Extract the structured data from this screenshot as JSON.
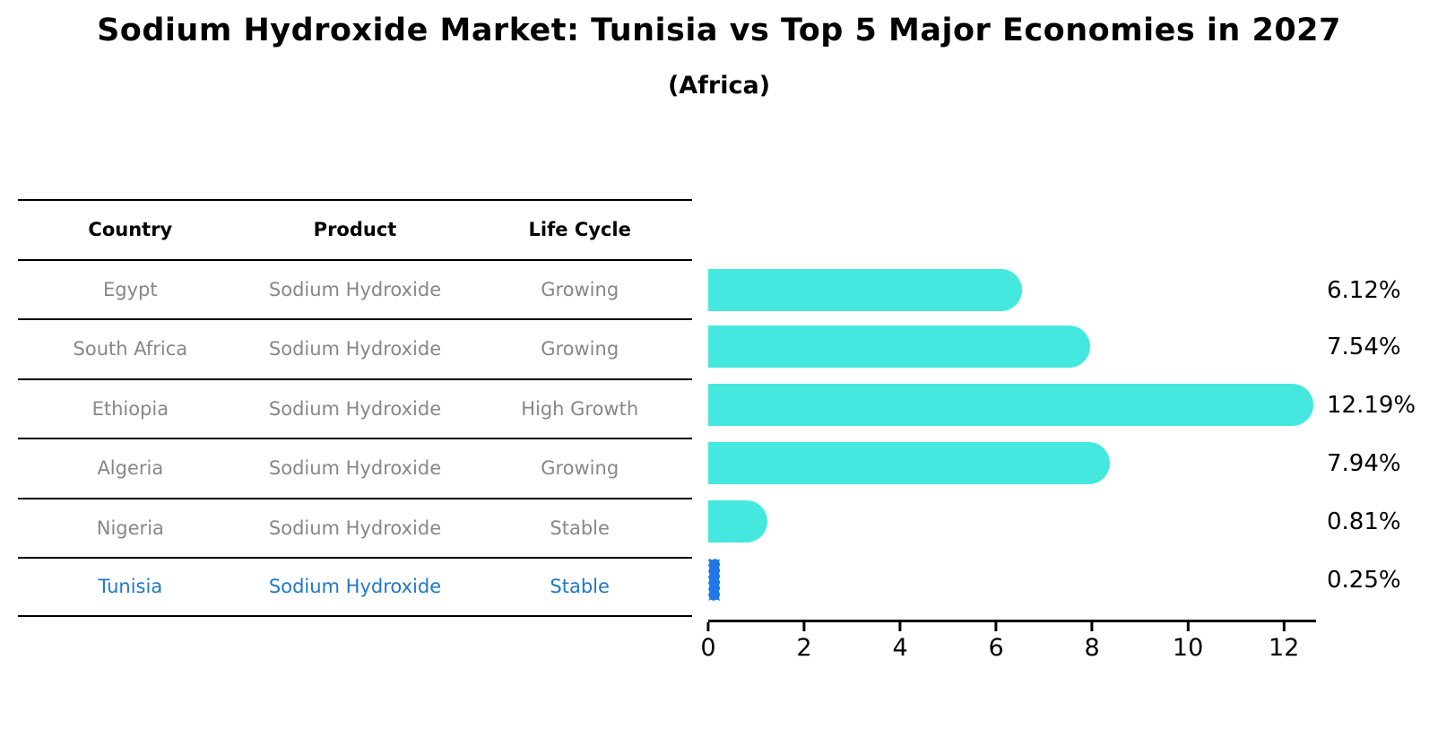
{
  "title": "Sodium Hydroxide Market: Tunisia vs Top 5 Major Economies in 2027",
  "subtitle": "(Africa)",
  "table": {
    "headers": [
      "Country",
      "Product",
      "Life Cycle"
    ],
    "rows": [
      {
        "country": "Egypt",
        "product": "Sodium Hydroxide",
        "life_cycle": "Growing"
      },
      {
        "country": "South Africa",
        "product": "Sodium Hydroxide",
        "life_cycle": "Growing"
      },
      {
        "country": "Ethiopia",
        "product": "Sodium Hydroxide",
        "life_cycle": "High Growth"
      },
      {
        "country": "Algeria",
        "product": "Sodium Hydroxide",
        "life_cycle": "Growing"
      },
      {
        "country": "Nigeria",
        "product": "Sodium Hydroxide",
        "life_cycle": "Stable"
      },
      {
        "country": "Tunisia",
        "product": "Sodium Hydroxide",
        "life_cycle": "Stable"
      }
    ]
  },
  "chart_data": {
    "type": "bar",
    "orientation": "horizontal",
    "title": "Sodium Hydroxide Market: Tunisia vs Top 5 Major Economies in 2027 (Africa)",
    "categories": [
      "Egypt",
      "South Africa",
      "Ethiopia",
      "Algeria",
      "Nigeria",
      "Tunisia"
    ],
    "values": [
      6.12,
      7.54,
      12.19,
      7.94,
      0.81,
      0.25
    ],
    "value_labels": [
      "6.12%",
      "7.54%",
      "12.19%",
      "7.94%",
      "0.81%",
      "0.25%"
    ],
    "unit": "%",
    "xticks": [
      0,
      2,
      4,
      6,
      8,
      10,
      12
    ],
    "xlim": [
      0,
      12.67
    ],
    "xlabel": "",
    "ylabel": "",
    "grid": false,
    "legend": false,
    "highlight_index": 5,
    "bar_color": "#45e8de",
    "highlight_bar_color": "#2277e8",
    "highlight_text_color": "#1f77c9"
  }
}
